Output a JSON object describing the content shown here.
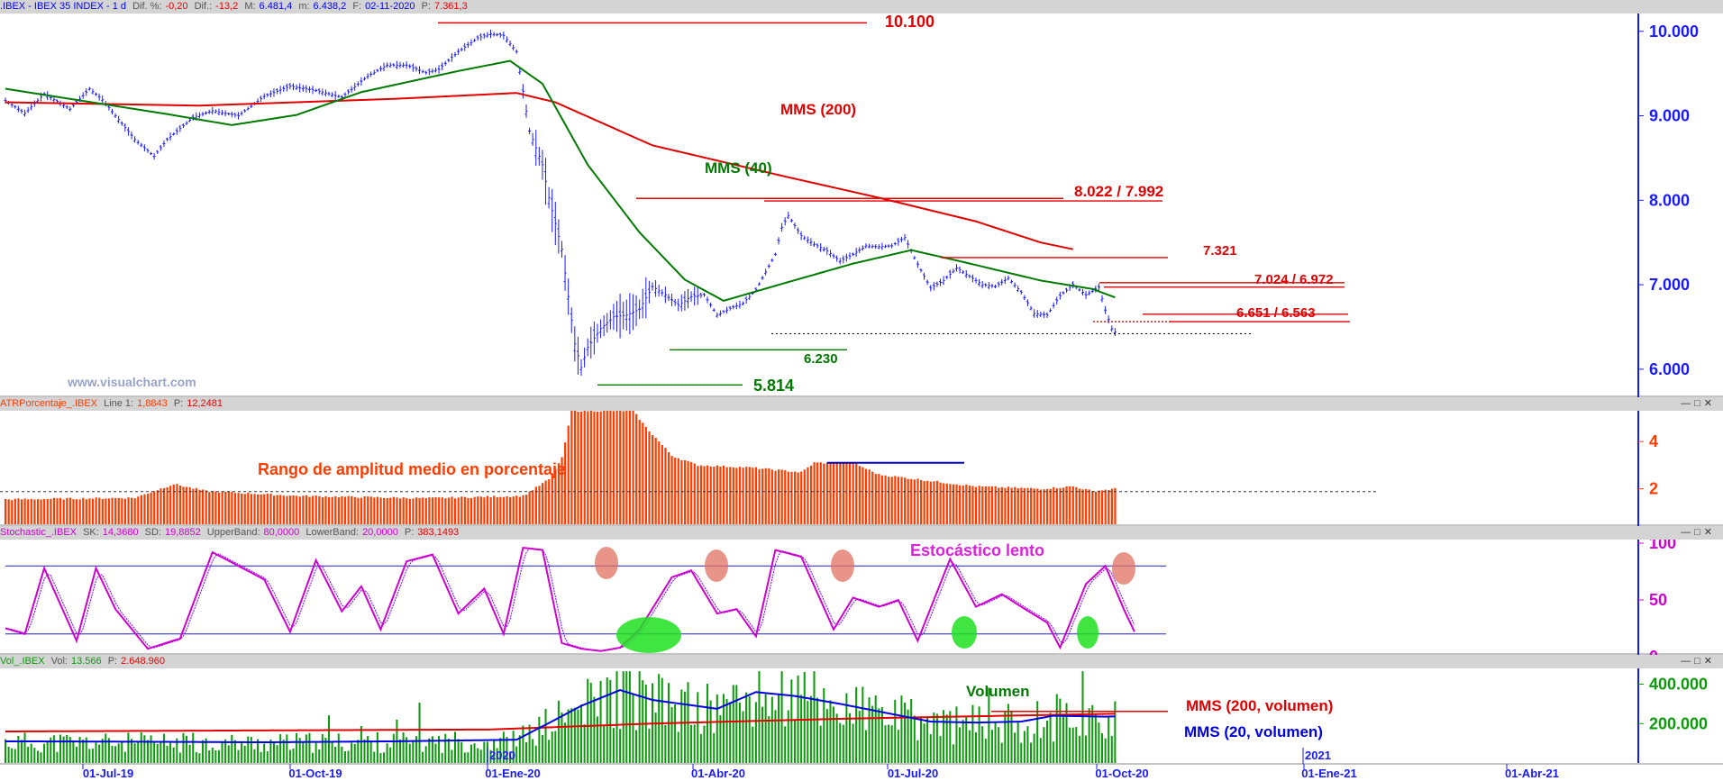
{
  "colors": {
    "price_bars": "#1a1aff",
    "sma200": "#e00000",
    "sma40": "#007a00",
    "atr": "#ff3c00",
    "stoch_k": "#d000d0",
    "stoch_d": "#7a00ff",
    "vol_bars": "#0a9a0a",
    "vol_sma20": "#0000e0",
    "vol_sma200": "#e00000",
    "axis": "#1a1aff",
    "hline_red": "#e00000",
    "hline_green": "#007a00",
    "hline_blue": "#0000c0"
  },
  "panel_price": {
    "header": {
      "symbol": ".IBEX - IBEX 35 INDEX - 1 d",
      "dif_pct_label": "Dif. %:",
      "dif_pct": "-0,20",
      "dif_label": "Dif.:",
      "dif": "-13,2",
      "m_label": "M:",
      "m": "6.481,4",
      "min_label": "m:",
      "min": "6.438,2",
      "f_label": "F:",
      "f": "02-11-2020",
      "p_label": "P:",
      "p": "7.361,3"
    },
    "watermark": "www.visualchart.com",
    "annotations": {
      "a10100": "10.100",
      "sma200": "MMS (200)",
      "sma40": "MMS (40)",
      "a8022": "8.022 / 7.992",
      "a7321": "7.321",
      "a7024": "7.024 / 6.972",
      "a6651": "6.651 / 6.563",
      "a6230": "6.230",
      "a5814": "5.814"
    },
    "y_ticks": [
      "10.000",
      "9.000",
      "8.000",
      "7.000",
      "6.000"
    ]
  },
  "panel_atr": {
    "header": {
      "name": "ATRPorcentaje_.IBEX",
      "line_label": "Line 1:",
      "line": "1,8843",
      "p_label": "P:",
      "p": "12,2481"
    },
    "annotation": "Rango de amplitud medio en porcentaje",
    "y_ticks": [
      "4",
      "2"
    ]
  },
  "panel_stoch": {
    "header": {
      "name": "Stochastic_.IBEX",
      "sk_label": "SK:",
      "sk": "14,3680",
      "sd_label": "SD:",
      "sd": "19,8852",
      "ub_label": "UpperBand:",
      "ub": "80,0000",
      "lb_label": "LowerBand:",
      "lb": "20,0000",
      "p_label": "P:",
      "p": "383,1493"
    },
    "annotation": "Estocástico lento",
    "y_ticks": [
      "100",
      "50",
      "0"
    ]
  },
  "panel_vol": {
    "header": {
      "name": "Vol_.IBEX",
      "vol_label": "Vol:",
      "vol": "13.566",
      "p_label": "P:",
      "p": "2.648.960"
    },
    "annotations": {
      "vol": "Volumen",
      "sma200": "MMS (200, volumen)",
      "sma20": "MMS (20, volumen)"
    },
    "y_ticks": [
      "400.000",
      "200.000"
    ],
    "year_labels": [
      "2020",
      "2021"
    ]
  },
  "x_ticks": [
    "01-Jul-19",
    "01-Oct-19",
    "01-Ene-20",
    "01-Abr-20",
    "01-Jul-20",
    "01-Oct-20",
    "01-Ene-21",
    "01-Abr-21"
  ],
  "chart_data": {
    "type": "line",
    "price_anchors": [
      [
        0,
        9180
      ],
      [
        6,
        9030
      ],
      [
        12,
        9260
      ],
      [
        20,
        9080
      ],
      [
        26,
        9320
      ],
      [
        30,
        9190
      ],
      [
        40,
        8720
      ],
      [
        46,
        8520
      ],
      [
        50,
        8720
      ],
      [
        58,
        8980
      ],
      [
        64,
        9060
      ],
      [
        72,
        9000
      ],
      [
        80,
        9230
      ],
      [
        88,
        9350
      ],
      [
        96,
        9300
      ],
      [
        104,
        9220
      ],
      [
        112,
        9470
      ],
      [
        118,
        9600
      ],
      [
        124,
        9600
      ],
      [
        130,
        9510
      ],
      [
        134,
        9550
      ],
      [
        140,
        9760
      ],
      [
        146,
        9920
      ],
      [
        150,
        9970
      ],
      [
        154,
        9950
      ],
      [
        158,
        9760
      ],
      [
        162,
        8820
      ],
      [
        166,
        8420
      ],
      [
        168,
        8030
      ],
      [
        172,
        7420
      ],
      [
        176,
        6300
      ],
      [
        178,
        6020
      ],
      [
        180,
        6260
      ],
      [
        184,
        6480
      ],
      [
        188,
        6620
      ],
      [
        192,
        6640
      ],
      [
        196,
        6710
      ],
      [
        200,
        6980
      ],
      [
        204,
        6880
      ],
      [
        208,
        6760
      ],
      [
        212,
        6860
      ],
      [
        216,
        6880
      ],
      [
        220,
        6640
      ],
      [
        224,
        6720
      ],
      [
        228,
        6780
      ],
      [
        232,
        6940
      ],
      [
        238,
        7360
      ],
      [
        240,
        7680
      ],
      [
        242,
        7820
      ],
      [
        246,
        7580
      ],
      [
        250,
        7480
      ],
      [
        254,
        7400
      ],
      [
        258,
        7280
      ],
      [
        262,
        7360
      ],
      [
        266,
        7460
      ],
      [
        270,
        7450
      ],
      [
        274,
        7460
      ],
      [
        278,
        7560
      ],
      [
        282,
        7240
      ],
      [
        286,
        6960
      ],
      [
        290,
        7050
      ],
      [
        294,
        7200
      ],
      [
        298,
        7100
      ],
      [
        302,
        7000
      ],
      [
        306,
        6980
      ],
      [
        310,
        7080
      ],
      [
        314,
        6910
      ],
      [
        318,
        6660
      ],
      [
        322,
        6640
      ],
      [
        326,
        6870
      ],
      [
        330,
        7000
      ],
      [
        334,
        6880
      ],
      [
        338,
        6970
      ],
      [
        340,
        6700
      ],
      [
        342,
        6480
      ],
      [
        343,
        6440
      ]
    ],
    "sma200_anchors": [
      [
        0,
        9160
      ],
      [
        60,
        9120
      ],
      [
        120,
        9200
      ],
      [
        158,
        9270
      ],
      [
        170,
        9160
      ],
      [
        200,
        8650
      ],
      [
        240,
        8290
      ],
      [
        270,
        8030
      ],
      [
        300,
        7750
      ],
      [
        320,
        7500
      ],
      [
        330,
        7420
      ]
    ],
    "sma40_anchors": [
      [
        0,
        9320
      ],
      [
        20,
        9200
      ],
      [
        50,
        9020
      ],
      [
        70,
        8890
      ],
      [
        90,
        9010
      ],
      [
        110,
        9280
      ],
      [
        140,
        9530
      ],
      [
        156,
        9650
      ],
      [
        166,
        9380
      ],
      [
        180,
        8420
      ],
      [
        196,
        7620
      ],
      [
        210,
        7060
      ],
      [
        222,
        6810
      ],
      [
        240,
        7010
      ],
      [
        262,
        7250
      ],
      [
        280,
        7410
      ],
      [
        296,
        7270
      ],
      [
        320,
        7050
      ],
      [
        336,
        6950
      ],
      [
        343,
        6850
      ]
    ],
    "atr_anchors": [
      [
        0,
        1.55
      ],
      [
        40,
        1.62
      ],
      [
        52,
        2.2
      ],
      [
        62,
        1.9
      ],
      [
        90,
        1.7
      ],
      [
        130,
        1.6
      ],
      [
        160,
        1.7
      ],
      [
        168,
        2.4
      ],
      [
        172,
        3.3
      ],
      [
        175,
        5.3
      ],
      [
        180,
        5.3
      ],
      [
        194,
        5.3
      ],
      [
        198,
        4.6
      ],
      [
        206,
        3.4
      ],
      [
        214,
        3.0
      ],
      [
        230,
        2.9
      ],
      [
        246,
        2.7
      ],
      [
        250,
        3.1
      ],
      [
        262,
        3.1
      ],
      [
        270,
        2.6
      ],
      [
        300,
        2.1
      ],
      [
        320,
        2.0
      ],
      [
        330,
        2.1
      ],
      [
        336,
        1.9
      ],
      [
        343,
        2.0
      ]
    ],
    "stoch_anchors": [
      [
        0,
        25
      ],
      [
        6,
        20
      ],
      [
        12,
        78
      ],
      [
        22,
        14
      ],
      [
        28,
        78
      ],
      [
        34,
        42
      ],
      [
        44,
        7
      ],
      [
        54,
        16
      ],
      [
        64,
        92
      ],
      [
        72,
        80
      ],
      [
        80,
        68
      ],
      [
        88,
        22
      ],
      [
        96,
        85
      ],
      [
        104,
        40
      ],
      [
        110,
        62
      ],
      [
        116,
        24
      ],
      [
        124,
        84
      ],
      [
        132,
        90
      ],
      [
        140,
        38
      ],
      [
        148,
        60
      ],
      [
        154,
        20
      ],
      [
        160,
        96
      ],
      [
        166,
        94
      ],
      [
        172,
        12
      ],
      [
        178,
        7
      ],
      [
        184,
        5
      ],
      [
        190,
        8
      ],
      [
        196,
        24
      ],
      [
        206,
        70
      ],
      [
        212,
        76
      ],
      [
        220,
        38
      ],
      [
        226,
        42
      ],
      [
        232,
        18
      ],
      [
        238,
        94
      ],
      [
        246,
        88
      ],
      [
        256,
        24
      ],
      [
        262,
        52
      ],
      [
        270,
        44
      ],
      [
        276,
        50
      ],
      [
        282,
        14
      ],
      [
        292,
        86
      ],
      [
        300,
        44
      ],
      [
        308,
        55
      ],
      [
        314,
        44
      ],
      [
        322,
        30
      ],
      [
        326,
        8
      ],
      [
        334,
        64
      ],
      [
        340,
        80
      ],
      [
        346,
        40
      ],
      [
        350,
        16
      ]
    ],
    "vol_anchors": [
      [
        0,
        110000
      ],
      [
        40,
        108000
      ],
      [
        80,
        105000
      ],
      [
        120,
        110000
      ],
      [
        158,
        118000
      ],
      [
        170,
        220000
      ],
      [
        178,
        290000
      ],
      [
        190,
        370000
      ],
      [
        200,
        320000
      ],
      [
        220,
        275000
      ],
      [
        232,
        360000
      ],
      [
        244,
        340000
      ],
      [
        258,
        300000
      ],
      [
        272,
        255000
      ],
      [
        286,
        210000
      ],
      [
        300,
        205000
      ],
      [
        314,
        210000
      ],
      [
        324,
        240000
      ],
      [
        340,
        235000
      ],
      [
        350,
        240000
      ]
    ],
    "ylim_price": [
      5700,
      10200
    ],
    "ylim_atr": [
      0.5,
      5.3
    ],
    "ylim_stoch": [
      0,
      100
    ],
    "ylim_vol": [
      0,
      480000
    ]
  }
}
